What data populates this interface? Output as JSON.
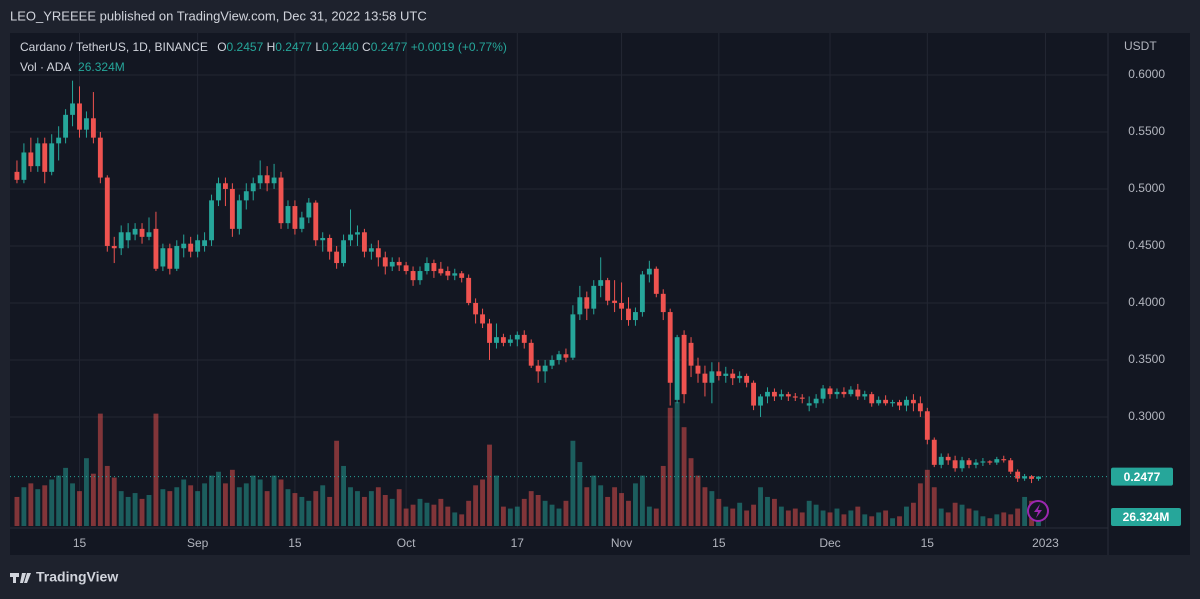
{
  "header": {
    "published": "LEO_YREEEE published on TradingView.com, Dec 31, 2022 13:58 UTC"
  },
  "chart_data": {
    "type": "candlestick",
    "symbol": "Cardano / TetherUS, 1D, BINANCE",
    "legend": {
      "open_prefix": "O",
      "open": "0.2457",
      "high_prefix": "H",
      "high": "0.2477",
      "low_prefix": "L",
      "low": "0.2440",
      "close_prefix": "C",
      "close": "0.2477",
      "change": "+0.0019",
      "change_pct": "(+0.77%)"
    },
    "volume_title": "Vol · ADA",
    "volume_label": "26.324M",
    "y_unit": "USDT",
    "up_color": "#26a69a",
    "down_color": "#ef5350",
    "grid": true,
    "xlim": [
      "2022-08-05",
      "2023-01-10"
    ],
    "ylim": [
      0.2026,
      0.6368
    ],
    "xticks": [
      {
        "value": "2022-08-15",
        "label": "15"
      },
      {
        "value": "2022-09-01",
        "label": "Sep"
      },
      {
        "value": "2022-09-15",
        "label": "15"
      },
      {
        "value": "2022-10-01",
        "label": "Oct"
      },
      {
        "value": "2022-10-17",
        "label": "17"
      },
      {
        "value": "2022-11-01",
        "label": "Nov"
      },
      {
        "value": "2022-11-15",
        "label": "15"
      },
      {
        "value": "2022-12-01",
        "label": "Dec"
      },
      {
        "value": "2022-12-15",
        "label": "15"
      },
      {
        "value": "2023-01-01",
        "label": "2023"
      }
    ],
    "yticks": [
      {
        "value": 0.3,
        "label": "0.3000"
      },
      {
        "value": 0.35,
        "label": "0.3500"
      },
      {
        "value": 0.4,
        "label": "0.4000"
      },
      {
        "value": 0.45,
        "label": "0.4500"
      },
      {
        "value": 0.5,
        "label": "0.5000"
      },
      {
        "value": 0.55,
        "label": "0.5500"
      },
      {
        "value": 0.6,
        "label": "0.6000"
      }
    ],
    "x": [
      "2022-08-06",
      "2022-08-07",
      "2022-08-08",
      "2022-08-09",
      "2022-08-10",
      "2022-08-11",
      "2022-08-12",
      "2022-08-13",
      "2022-08-14",
      "2022-08-15",
      "2022-08-16",
      "2022-08-17",
      "2022-08-18",
      "2022-08-19",
      "2022-08-20",
      "2022-08-21",
      "2022-08-22",
      "2022-08-23",
      "2022-08-24",
      "2022-08-25",
      "2022-08-26",
      "2022-08-27",
      "2022-08-28",
      "2022-08-29",
      "2022-08-30",
      "2022-08-31",
      "2022-09-01",
      "2022-09-02",
      "2022-09-03",
      "2022-09-04",
      "2022-09-05",
      "2022-09-06",
      "2022-09-07",
      "2022-09-08",
      "2022-09-09",
      "2022-09-10",
      "2022-09-11",
      "2022-09-12",
      "2022-09-13",
      "2022-09-14",
      "2022-09-15",
      "2022-09-16",
      "2022-09-17",
      "2022-09-18",
      "2022-09-19",
      "2022-09-20",
      "2022-09-21",
      "2022-09-22",
      "2022-09-23",
      "2022-09-24",
      "2022-09-25",
      "2022-09-26",
      "2022-09-27",
      "2022-09-28",
      "2022-09-29",
      "2022-09-30",
      "2022-10-01",
      "2022-10-02",
      "2022-10-03",
      "2022-10-04",
      "2022-10-05",
      "2022-10-06",
      "2022-10-07",
      "2022-10-08",
      "2022-10-09",
      "2022-10-10",
      "2022-10-11",
      "2022-10-12",
      "2022-10-13",
      "2022-10-14",
      "2022-10-15",
      "2022-10-16",
      "2022-10-17",
      "2022-10-18",
      "2022-10-19",
      "2022-10-20",
      "2022-10-21",
      "2022-10-22",
      "2022-10-23",
      "2022-10-24",
      "2022-10-25",
      "2022-10-26",
      "2022-10-27",
      "2022-10-28",
      "2022-10-29",
      "2022-10-30",
      "2022-10-31",
      "2022-11-01",
      "2022-11-02",
      "2022-11-03",
      "2022-11-04",
      "2022-11-05",
      "2022-11-06",
      "2022-11-07",
      "2022-11-08",
      "2022-11-09",
      "2022-11-10",
      "2022-11-11",
      "2022-11-12",
      "2022-11-13",
      "2022-11-14",
      "2022-11-15",
      "2022-11-16",
      "2022-11-17",
      "2022-11-18",
      "2022-11-19",
      "2022-11-20",
      "2022-11-21",
      "2022-11-22",
      "2022-11-23",
      "2022-11-24",
      "2022-11-25",
      "2022-11-26",
      "2022-11-27",
      "2022-11-28",
      "2022-11-29",
      "2022-11-30",
      "2022-12-01",
      "2022-12-02",
      "2022-12-03",
      "2022-12-04",
      "2022-12-05",
      "2022-12-06",
      "2022-12-07",
      "2022-12-08",
      "2022-12-09",
      "2022-12-10",
      "2022-12-11",
      "2022-12-12",
      "2022-12-13",
      "2022-12-14",
      "2022-12-15",
      "2022-12-16",
      "2022-12-17",
      "2022-12-18",
      "2022-12-19",
      "2022-12-20",
      "2022-12-21",
      "2022-12-22",
      "2022-12-23",
      "2022-12-24",
      "2022-12-25",
      "2022-12-26",
      "2022-12-27",
      "2022-12-28",
      "2022-12-29",
      "2022-12-30",
      "2022-12-31"
    ],
    "open": [
      0.515,
      0.508,
      0.532,
      0.52,
      0.54,
      0.515,
      0.54,
      0.545,
      0.565,
      0.575,
      0.552,
      0.562,
      0.545,
      0.51,
      0.45,
      0.448,
      0.455,
      0.46,
      0.465,
      0.458,
      0.465,
      0.432,
      0.448,
      0.43,
      0.448,
      0.452,
      0.445,
      0.45,
      0.455,
      0.49,
      0.505,
      0.5,
      0.465,
      0.49,
      0.498,
      0.505,
      0.512,
      0.505,
      0.51,
      0.47,
      0.485,
      0.465,
      0.475,
      0.488,
      0.455,
      0.457,
      0.445,
      0.435,
      0.455,
      0.46,
      0.462,
      0.445,
      0.448,
      0.44,
      0.432,
      0.436,
      0.433,
      0.428,
      0.42,
      0.428,
      0.435,
      0.43,
      0.428,
      0.424,
      0.426,
      0.422,
      0.4,
      0.39,
      0.382,
      0.365,
      0.37,
      0.365,
      0.368,
      0.372,
      0.365,
      0.345,
      0.34,
      0.345,
      0.35,
      0.355,
      0.352,
      0.39,
      0.405,
      0.395,
      0.415,
      0.42,
      0.402,
      0.4,
      0.395,
      0.385,
      0.392,
      0.425,
      0.43,
      0.408,
      0.392,
      0.315,
      0.372,
      0.365,
      0.345,
      0.338,
      0.33,
      0.34,
      0.336,
      0.338,
      0.334,
      0.336,
      0.33,
      0.31,
      0.318,
      0.322,
      0.318,
      0.32,
      0.318,
      0.317,
      0.31,
      0.312,
      0.316,
      0.325,
      0.32,
      0.322,
      0.32,
      0.324,
      0.318,
      0.32,
      0.312,
      0.315,
      0.312,
      0.313,
      0.31,
      0.315,
      0.312,
      0.305,
      0.28,
      0.258,
      0.265,
      0.262,
      0.255,
      0.262,
      0.258,
      0.26,
      0.261,
      0.26,
      0.263,
      0.262,
      0.252,
      0.246,
      0.248,
      0.2457
    ],
    "high": [
      0.525,
      0.54,
      0.545,
      0.545,
      0.545,
      0.548,
      0.555,
      0.57,
      0.595,
      0.59,
      0.568,
      0.585,
      0.55,
      0.512,
      0.458,
      0.468,
      0.47,
      0.47,
      0.47,
      0.475,
      0.48,
      0.452,
      0.452,
      0.455,
      0.46,
      0.458,
      0.46,
      0.462,
      0.495,
      0.51,
      0.51,
      0.505,
      0.495,
      0.505,
      0.51,
      0.525,
      0.52,
      0.522,
      0.515,
      0.49,
      0.49,
      0.48,
      0.492,
      0.49,
      0.462,
      0.46,
      0.45,
      0.46,
      0.482,
      0.468,
      0.465,
      0.452,
      0.455,
      0.445,
      0.44,
      0.44,
      0.436,
      0.432,
      0.432,
      0.44,
      0.438,
      0.436,
      0.432,
      0.43,
      0.428,
      0.425,
      0.404,
      0.395,
      0.386,
      0.382,
      0.373,
      0.372,
      0.375,
      0.376,
      0.368,
      0.35,
      0.35,
      0.354,
      0.358,
      0.36,
      0.398,
      0.415,
      0.41,
      0.42,
      0.44,
      0.422,
      0.42,
      0.418,
      0.405,
      0.396,
      0.428,
      0.437,
      0.432,
      0.412,
      0.395,
      0.372,
      0.376,
      0.37,
      0.352,
      0.345,
      0.348,
      0.348,
      0.344,
      0.342,
      0.34,
      0.338,
      0.332,
      0.32,
      0.326,
      0.325,
      0.324,
      0.322,
      0.321,
      0.32,
      0.318,
      0.32,
      0.328,
      0.327,
      0.325,
      0.326,
      0.327,
      0.329,
      0.323,
      0.322,
      0.318,
      0.319,
      0.315,
      0.315,
      0.318,
      0.32,
      0.318,
      0.308,
      0.282,
      0.268,
      0.268,
      0.266,
      0.265,
      0.264,
      0.263,
      0.264,
      0.262,
      0.265,
      0.266,
      0.264,
      0.254,
      0.25,
      0.249,
      0.2477
    ],
    "low": [
      0.505,
      0.505,
      0.515,
      0.515,
      0.505,
      0.512,
      0.525,
      0.54,
      0.555,
      0.545,
      0.545,
      0.54,
      0.505,
      0.445,
      0.435,
      0.442,
      0.448,
      0.455,
      0.452,
      0.455,
      0.428,
      0.428,
      0.425,
      0.428,
      0.44,
      0.44,
      0.44,
      0.445,
      0.45,
      0.485,
      0.485,
      0.458,
      0.46,
      0.482,
      0.49,
      0.5,
      0.498,
      0.5,
      0.465,
      0.465,
      0.46,
      0.462,
      0.47,
      0.45,
      0.445,
      0.438,
      0.43,
      0.432,
      0.45,
      0.45,
      0.44,
      0.438,
      0.432,
      0.425,
      0.428,
      0.428,
      0.425,
      0.415,
      0.416,
      0.425,
      0.422,
      0.424,
      0.42,
      0.42,
      0.418,
      0.398,
      0.382,
      0.378,
      0.35,
      0.36,
      0.362,
      0.362,
      0.362,
      0.36,
      0.343,
      0.33,
      0.33,
      0.342,
      0.346,
      0.348,
      0.35,
      0.385,
      0.385,
      0.39,
      0.405,
      0.398,
      0.392,
      0.385,
      0.38,
      0.38,
      0.388,
      0.418,
      0.405,
      0.385,
      0.31,
      0.312,
      0.312,
      0.335,
      0.33,
      0.318,
      0.312,
      0.332,
      0.33,
      0.328,
      0.33,
      0.326,
      0.306,
      0.3,
      0.312,
      0.314,
      0.315,
      0.314,
      0.314,
      0.312,
      0.305,
      0.308,
      0.312,
      0.316,
      0.316,
      0.317,
      0.318,
      0.315,
      0.315,
      0.309,
      0.31,
      0.31,
      0.309,
      0.306,
      0.305,
      0.305,
      0.3,
      0.276,
      0.256,
      0.255,
      0.258,
      0.252,
      0.252,
      0.255,
      0.255,
      0.257,
      0.258,
      0.258,
      0.26,
      0.25,
      0.243,
      0.244,
      0.242,
      0.244
    ],
    "close": [
      0.508,
      0.532,
      0.52,
      0.54,
      0.515,
      0.54,
      0.545,
      0.565,
      0.575,
      0.552,
      0.562,
      0.545,
      0.51,
      0.45,
      0.448,
      0.462,
      0.462,
      0.465,
      0.458,
      0.462,
      0.43,
      0.448,
      0.43,
      0.45,
      0.452,
      0.445,
      0.455,
      0.455,
      0.49,
      0.505,
      0.5,
      0.465,
      0.49,
      0.498,
      0.505,
      0.512,
      0.505,
      0.51,
      0.47,
      0.485,
      0.465,
      0.475,
      0.488,
      0.455,
      0.457,
      0.445,
      0.435,
      0.455,
      0.46,
      0.462,
      0.445,
      0.448,
      0.44,
      0.432,
      0.436,
      0.433,
      0.428,
      0.42,
      0.428,
      0.435,
      0.428,
      0.426,
      0.424,
      0.426,
      0.422,
      0.4,
      0.39,
      0.382,
      0.365,
      0.37,
      0.365,
      0.368,
      0.372,
      0.365,
      0.345,
      0.34,
      0.345,
      0.35,
      0.355,
      0.352,
      0.39,
      0.405,
      0.395,
      0.415,
      0.42,
      0.402,
      0.4,
      0.395,
      0.385,
      0.392,
      0.425,
      0.43,
      0.408,
      0.392,
      0.33,
      0.37,
      0.32,
      0.345,
      0.338,
      0.33,
      0.34,
      0.336,
      0.338,
      0.334,
      0.336,
      0.33,
      0.31,
      0.318,
      0.322,
      0.318,
      0.32,
      0.318,
      0.317,
      0.316,
      0.312,
      0.316,
      0.325,
      0.32,
      0.322,
      0.32,
      0.324,
      0.318,
      0.32,
      0.312,
      0.315,
      0.312,
      0.313,
      0.31,
      0.315,
      0.312,
      0.305,
      0.28,
      0.258,
      0.265,
      0.262,
      0.255,
      0.262,
      0.258,
      0.26,
      0.261,
      0.26,
      0.263,
      0.262,
      0.252,
      0.246,
      0.248,
      0.2457,
      0.2477
    ],
    "volume": [
      30,
      40,
      44,
      38,
      42,
      48,
      52,
      60,
      44,
      36,
      70,
      54,
      116,
      62,
      50,
      36,
      30,
      34,
      28,
      32,
      116,
      38,
      36,
      40,
      48,
      42,
      36,
      44,
      52,
      56,
      44,
      58,
      40,
      44,
      52,
      48,
      36,
      52,
      48,
      38,
      34,
      30,
      26,
      36,
      42,
      30,
      88,
      62,
      40,
      36,
      30,
      36,
      40,
      32,
      28,
      38,
      18,
      22,
      28,
      24,
      22,
      28,
      20,
      14,
      12,
      26,
      42,
      48,
      84,
      52,
      20,
      18,
      20,
      28,
      36,
      32,
      26,
      22,
      18,
      26,
      88,
      66,
      40,
      52,
      42,
      30,
      40,
      34,
      26,
      44,
      52,
      20,
      18,
      62,
      122,
      128,
      102,
      70,
      52,
      40,
      36,
      28,
      20,
      18,
      24,
      16,
      22,
      40,
      30,
      28,
      20,
      16,
      18,
      14,
      26,
      22,
      16,
      14,
      18,
      12,
      16,
      20,
      12,
      10,
      14,
      16,
      8,
      10,
      20,
      24,
      44,
      58,
      40,
      18,
      14,
      24,
      22,
      18,
      16,
      10,
      8,
      12,
      14,
      12,
      18,
      30,
      26,
      26.324
    ]
  },
  "footer": {
    "brand": "TradingView"
  }
}
